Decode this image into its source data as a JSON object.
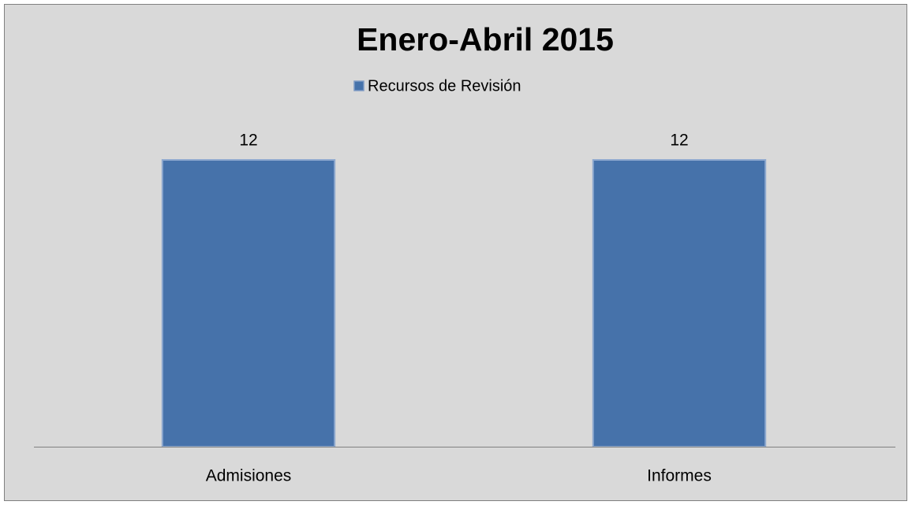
{
  "chart_data": {
    "type": "bar",
    "title": "Enero-Abril 2015",
    "categories": [
      "Admisiones",
      "Informes"
    ],
    "series": [
      {
        "name": "Recursos de Revisión",
        "color": "#4672aa",
        "values": [
          12,
          12
        ]
      }
    ],
    "data_labels": true,
    "legend": "top"
  }
}
